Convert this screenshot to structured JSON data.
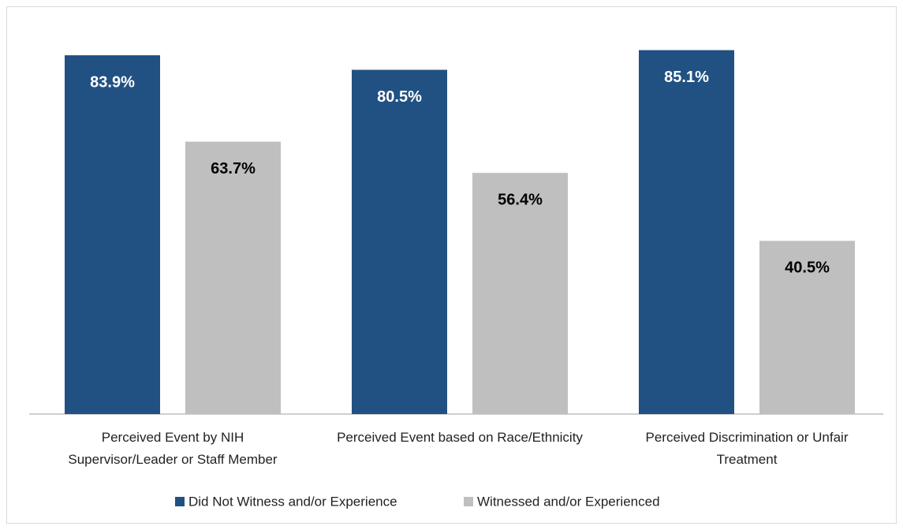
{
  "chart_data": {
    "type": "bar",
    "categories": [
      "Perceived Event by NIH Supervisor/Leader or Staff Member",
      "Perceived Event based on Race/Ethnicity",
      "Perceived Discrimination or Unfair Treatment"
    ],
    "series": [
      {
        "name": "Did Not Witness and/or Experience",
        "color": "#215183",
        "label_color": "#ffffff",
        "values": [
          83.9,
          80.5,
          85.1
        ],
        "value_labels": [
          "83.9%",
          "80.5%",
          "85.1%"
        ]
      },
      {
        "name": "Witnessed and/or Experienced",
        "color": "#bfbfbf",
        "label_color": "#000000",
        "values": [
          63.7,
          56.4,
          40.5
        ],
        "value_labels": [
          "63.7%",
          "56.4%",
          "40.5%"
        ]
      }
    ],
    "ylim": [
      0,
      90
    ],
    "grid": false,
    "legend": "bottom"
  }
}
